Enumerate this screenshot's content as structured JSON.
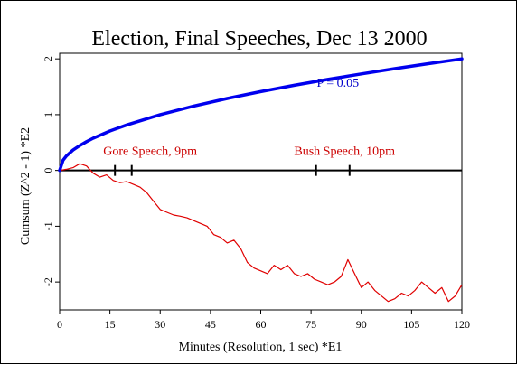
{
  "chart_data": {
    "type": "line",
    "title": "Election, Final Speeches, Dec 13 2000",
    "xlabel": "Minutes (Resolution, 1 sec)   *E1",
    "ylabel": "Cumsum (Z^2 - 1)   *E2",
    "xlim": [
      0,
      120
    ],
    "ylim": [
      -2.5,
      2.1
    ],
    "x_ticks": [
      0,
      15,
      30,
      45,
      60,
      75,
      90,
      105,
      120
    ],
    "y_ticks": [
      -2,
      -1,
      0,
      1,
      2
    ],
    "colors": {
      "cumsum": "#e00000",
      "p_curve": "#0000ee",
      "axes": "#000000"
    },
    "series": [
      {
        "values_x": [
          0,
          2,
          4,
          6,
          8,
          10,
          12,
          14,
          16,
          18,
          20,
          22,
          24,
          26,
          28,
          30,
          32,
          34,
          36,
          38,
          40,
          42,
          44,
          46,
          48,
          50,
          52,
          54,
          56,
          58,
          60,
          62,
          64,
          66,
          68,
          70,
          72,
          74,
          76,
          78,
          80,
          82,
          84,
          86,
          88,
          90,
          92,
          94,
          96,
          98,
          100,
          102,
          104,
          106,
          108,
          110,
          112,
          114,
          116,
          118,
          120
        ],
        "values_y": [
          0,
          0.02,
          0.05,
          0.12,
          0.08,
          -0.05,
          -0.12,
          -0.08,
          -0.18,
          -0.22,
          -0.2,
          -0.25,
          -0.3,
          -0.4,
          -0.55,
          -0.7,
          -0.75,
          -0.8,
          -0.82,
          -0.85,
          -0.9,
          -0.95,
          -1.0,
          -1.15,
          -1.2,
          -1.3,
          -1.25,
          -1.4,
          -1.65,
          -1.75,
          -1.8,
          -1.85,
          -1.7,
          -1.78,
          -1.7,
          -1.85,
          -1.9,
          -1.85,
          -1.95,
          -2.0,
          -2.05,
          -2.0,
          -1.9,
          -1.6,
          -1.85,
          -2.1,
          -2.0,
          -2.15,
          -2.25,
          -2.35,
          -2.3,
          -2.2,
          -2.25,
          -2.15,
          -2.0,
          -2.1,
          -2.2,
          -2.1,
          -2.35,
          -2.25,
          -2.05
        ]
      },
      {
        "formula": "y = 0.1825 * sqrt(x)",
        "values_x": [
          0,
          1,
          2,
          4,
          6,
          8,
          10,
          15,
          20,
          30,
          40,
          50,
          60,
          70,
          80,
          90,
          100,
          110,
          120
        ],
        "values_y": [
          0,
          0.1825,
          0.2581,
          0.365,
          0.447,
          0.5162,
          0.5771,
          0.7068,
          0.8162,
          0.9996,
          1.1542,
          1.2905,
          1.4136,
          1.5269,
          1.6323,
          1.7314,
          1.825,
          1.9141,
          1.9992
        ]
      }
    ],
    "annotations": [
      {
        "text": "P = 0.05",
        "x": 83,
        "y": 1.5,
        "color": "#0000cc"
      },
      {
        "text": "Gore Speech, 9pm",
        "x": 27,
        "y": 0.28,
        "color": "#cc0000"
      },
      {
        "text": "Bush Speech, 10pm",
        "x": 85,
        "y": 0.28,
        "color": "#cc0000"
      }
    ],
    "event_ticks_x": [
      16.5,
      21.5,
      76.5,
      86.5
    ],
    "legend": "none",
    "grid": false
  }
}
